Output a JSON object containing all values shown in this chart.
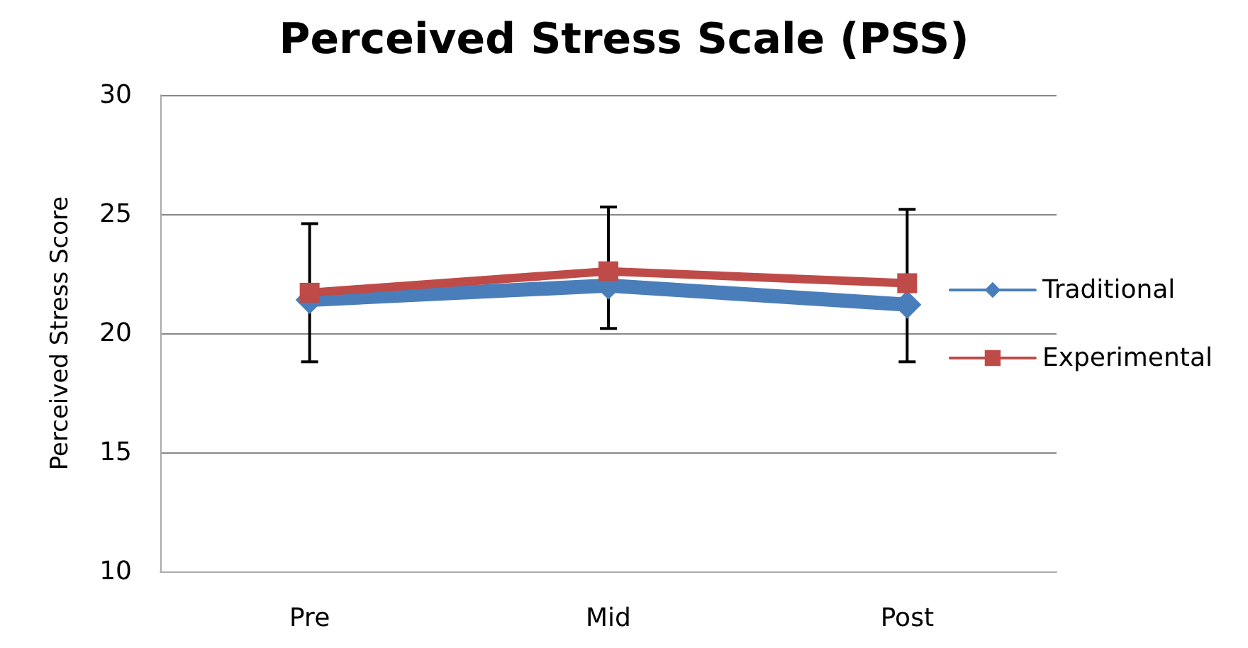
{
  "chart_data": {
    "type": "line",
    "title": "Perceived Stress Scale (PSS)",
    "ylabel": "Perceived Stress Score",
    "categories": [
      "Pre",
      "Mid",
      "Post"
    ],
    "series": [
      {
        "name": "Traditional",
        "color": "#4a7ebb",
        "marker": "diamond",
        "values": [
          21.4,
          22.0,
          21.2
        ]
      },
      {
        "name": "Experimental",
        "color": "#be4b48",
        "marker": "square",
        "values": [
          21.7,
          22.6,
          22.1
        ],
        "errors": [
          [
            18.8,
            24.6
          ],
          [
            20.2,
            25.3
          ],
          [
            18.8,
            25.2
          ]
        ]
      }
    ],
    "ylim": [
      10,
      30
    ],
    "yticks": [
      10,
      15,
      20,
      25,
      30
    ],
    "grid": "y",
    "legend": "right",
    "line_style": "solid"
  }
}
